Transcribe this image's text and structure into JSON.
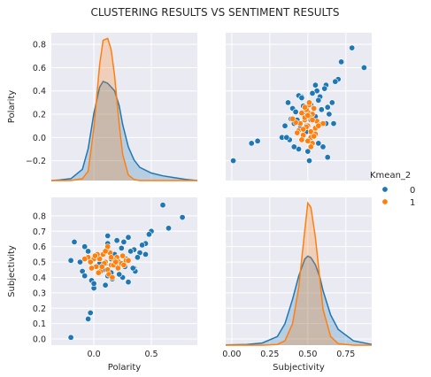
{
  "chart_data": {
    "type": "scatter",
    "title": "CLUSTERING RESULTS VS SENTIMENT RESULTS",
    "variables": [
      "Polarity",
      "Subjectivity"
    ],
    "legend": {
      "title": "Kmean_2",
      "position": "right",
      "entries": [
        "0",
        "1"
      ]
    },
    "colors": {
      "0": "#1f77b4",
      "1": "#ff7f0e",
      "panel": "#eaeaf2",
      "grid": "#ffffff"
    },
    "grid": true,
    "axes": {
      "Polarity": {
        "lim": [
          -0.37,
          0.9
        ],
        "ticks": [
          0.8,
          0.6,
          0.4,
          0.2,
          0.0,
          -0.2
        ],
        "tick_labels": [
          "0.8",
          "0.6",
          "0.4",
          "0.2",
          "0.0",
          "−0.2"
        ],
        "x_ticks": [
          0.0,
          0.5
        ],
        "x_tick_labels": [
          "0.0",
          "0.5"
        ]
      },
      "Subjectivity": {
        "lim": [
          -0.04,
          0.92
        ],
        "ticks": [
          0.8,
          0.7,
          0.6,
          0.5,
          0.4,
          0.3,
          0.2,
          0.1,
          0.0
        ],
        "tick_labels": [
          "0.8",
          "0.7",
          "0.6",
          "0.5",
          "0.4",
          "0.3",
          "0.2",
          "0.1",
          "0.0"
        ],
        "x_ticks": [
          0.0,
          0.25,
          0.5,
          0.75
        ],
        "x_tick_labels": [
          "0.00",
          "0.25",
          "0.50",
          "0.75"
        ]
      }
    },
    "kde_polarity": {
      "x": [
        -0.37,
        -0.3,
        -0.2,
        -0.1,
        -0.05,
        0.0,
        0.05,
        0.08,
        0.12,
        0.15,
        0.18,
        0.22,
        0.25,
        0.3,
        0.35,
        0.4,
        0.5,
        0.6,
        0.7,
        0.8,
        0.9
      ],
      "series": [
        {
          "name": "0",
          "values": [
            0.0,
            0.003,
            0.01,
            0.06,
            0.17,
            0.36,
            0.5,
            0.53,
            0.52,
            0.5,
            0.48,
            0.4,
            0.3,
            0.18,
            0.11,
            0.07,
            0.04,
            0.025,
            0.015,
            0.006,
            0.0
          ]
        },
        {
          "name": "1",
          "values": [
            0.0,
            0.0,
            0.0,
            0.01,
            0.05,
            0.28,
            0.62,
            0.75,
            0.76,
            0.7,
            0.56,
            0.3,
            0.14,
            0.03,
            0.005,
            0.0,
            0.0,
            0.0,
            0.0,
            0.0,
            0.0
          ]
        }
      ]
    },
    "kde_subjectivity": {
      "x": [
        -0.04,
        0.1,
        0.2,
        0.3,
        0.35,
        0.4,
        0.44,
        0.48,
        0.5,
        0.52,
        0.55,
        0.58,
        0.6,
        0.65,
        0.7,
        0.8,
        0.92
      ],
      "series": [
        {
          "name": "0",
          "values": [
            0.02,
            0.05,
            0.15,
            0.6,
            1.5,
            3.2,
            4.8,
            6.0,
            6.2,
            6.1,
            5.6,
            4.7,
            3.8,
            2.1,
            1.1,
            0.3,
            0.05
          ]
        },
        {
          "name": "1",
          "values": [
            0.0,
            0.0,
            0.0,
            0.05,
            0.3,
            1.5,
            4.0,
            8.0,
            9.9,
            9.6,
            7.5,
            4.5,
            2.5,
            0.6,
            0.1,
            0.0,
            0.0
          ]
        }
      ]
    },
    "scatter": {
      "series": [
        {
          "name": "0",
          "subjectivity": [
            0.33,
            0.01,
            0.13,
            0.17,
            0.41,
            0.79,
            0.87,
            0.72,
            0.62,
            0.7,
            0.56,
            0.46,
            0.37,
            0.44,
            0.63,
            0.51,
            0.48,
            0.68,
            0.35,
            0.4,
            0.58,
            0.52,
            0.66,
            0.43,
            0.6,
            0.49,
            0.55,
            0.38,
            0.64,
            0.45,
            0.57,
            0.42,
            0.61,
            0.5,
            0.53,
            0.47,
            0.67,
            0.39,
            0.59,
            0.54,
            0.44,
            0.62,
            0.36,
            0.57,
            0.52,
            0.46,
            0.63,
            0.41,
            0.55,
            0.49
          ],
          "polarity": [
            0.0,
            -0.2,
            -0.05,
            -0.03,
            0.12,
            0.77,
            0.6,
            0.65,
            0.45,
            0.5,
            0.4,
            0.35,
            0.3,
            -0.1,
            -0.17,
            -0.2,
            0.22,
            0.48,
            0.1,
            0.25,
            0.35,
            0.28,
            0.3,
            0.15,
            -0.08,
            0.05,
            0.18,
            -0.02,
            0.2,
            0.08,
            0.32,
            0.22,
            0.42,
            -0.12,
            0.38,
            0.27,
            0.12,
            0.16,
            0.24,
            0.02,
            0.36,
            0.12,
            0.0,
            -0.05,
            0.15,
            0.34,
            0.26,
            -0.08,
            0.45,
            0.1
          ]
        },
        {
          "name": "1",
          "subjectivity": [
            0.5,
            0.52,
            0.48,
            0.55,
            0.45,
            0.53,
            0.47,
            0.51,
            0.49,
            0.56,
            0.44,
            0.54,
            0.46,
            0.52,
            0.5,
            0.58,
            0.42,
            0.53,
            0.48,
            0.51,
            0.55,
            0.47,
            0.5,
            0.49,
            0.52,
            0.6,
            0.4,
            0.54,
            0.46,
            0.51,
            0.57,
            0.43,
            0.53,
            0.48,
            0.5
          ],
          "polarity": [
            0.1,
            0.05,
            0.15,
            0.08,
            0.12,
            0.2,
            0.02,
            0.18,
            0.09,
            0.14,
            0.06,
            0.25,
            -0.02,
            0.0,
            0.22,
            0.11,
            0.13,
            -0.05,
            0.17,
            0.28,
            0.03,
            0.07,
            0.19,
            0.24,
            -0.08,
            0.12,
            0.16,
            0.01,
            0.21,
            0.3,
            0.1,
            0.04,
            0.15,
            0.26,
            -0.03
          ]
        }
      ]
    },
    "layout_labels": {
      "x_labels": [
        "Polarity",
        "Subjectivity"
      ],
      "y_labels": [
        "Polarity",
        "Subjectivity"
      ]
    }
  }
}
